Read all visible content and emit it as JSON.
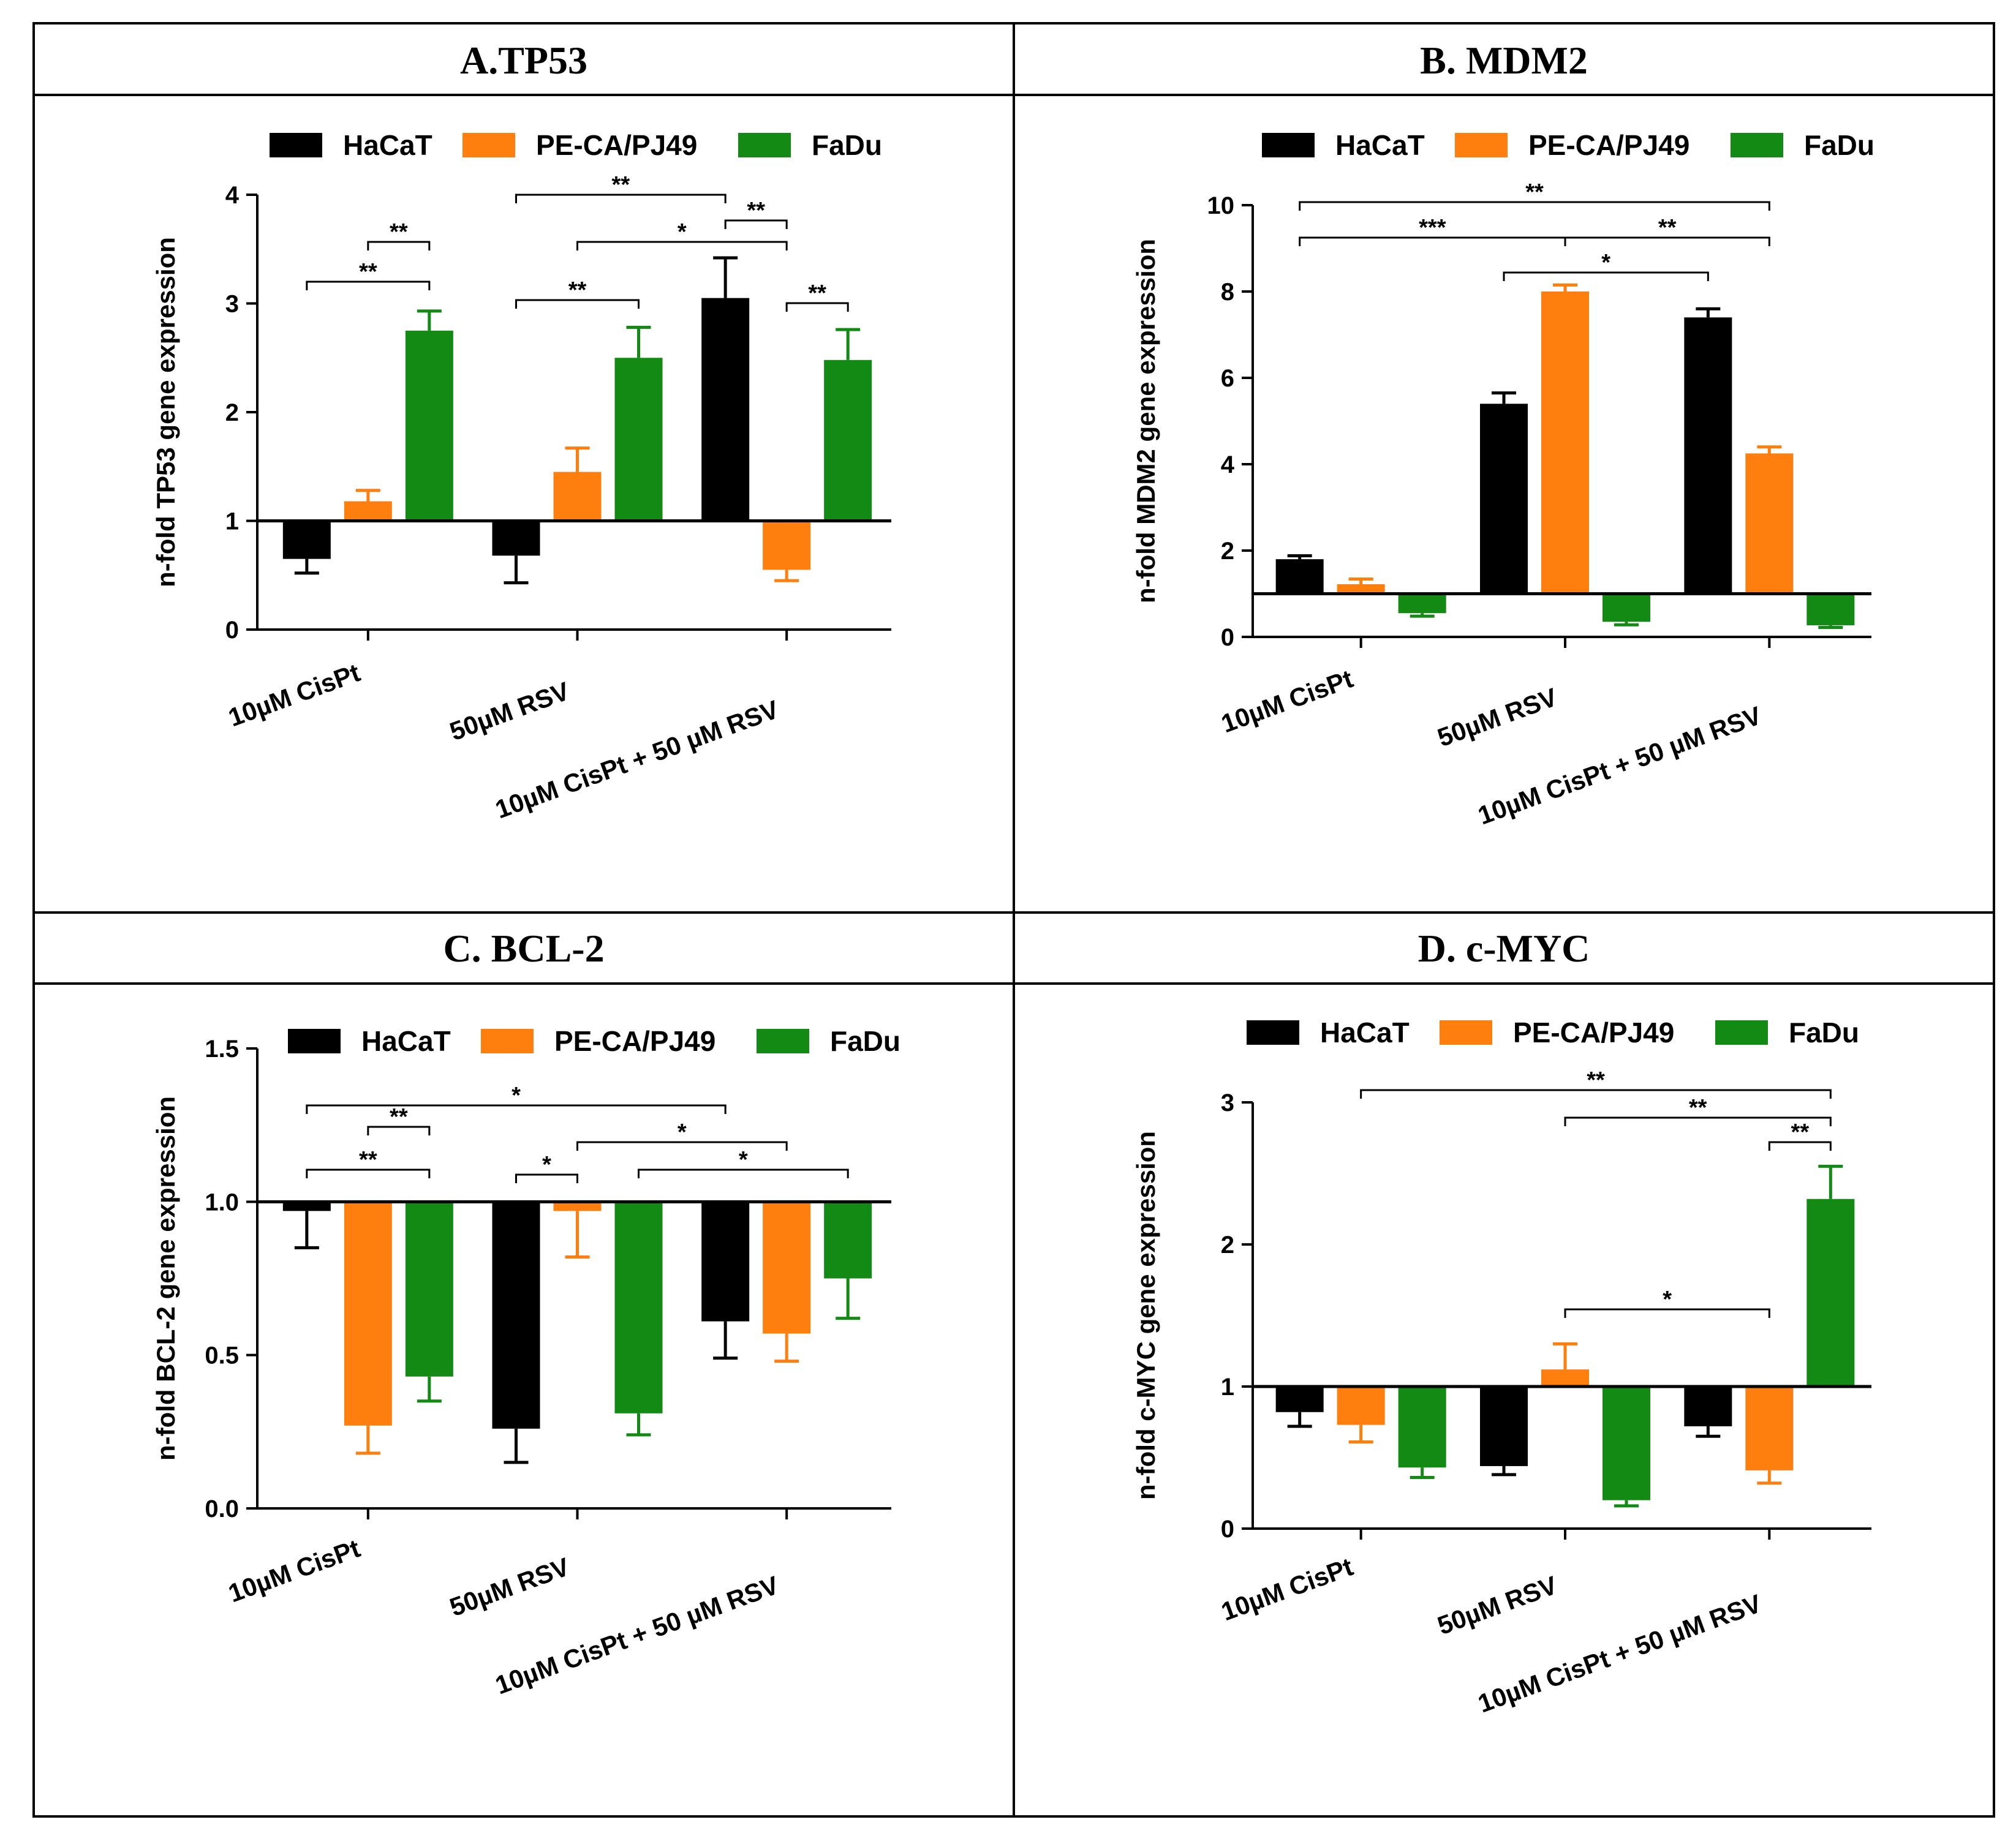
{
  "colors": {
    "HaCaT": "#000000",
    "PE-CA/PJ49": "#ff7f0e",
    "FaDu": "#138a13"
  },
  "chart_data": [
    {
      "type": "bar",
      "title": "A.TP53",
      "ylabel": "n-fold TP53 gene expression",
      "xlabel": "",
      "ylim": [
        0,
        4
      ],
      "yticks": [
        0,
        1,
        2,
        3,
        4
      ],
      "baseline": 1,
      "categories": [
        "10µM CisPt",
        "50µM RSV",
        "10µM CisPt + 50 µM RSV"
      ],
      "series": [
        {
          "name": "HaCaT",
          "values": [
            0.65,
            0.68,
            3.05
          ],
          "errors": [
            0.13,
            0.25,
            0.37
          ]
        },
        {
          "name": "PE-CA/PJ49",
          "values": [
            1.18,
            1.45,
            0.55
          ],
          "errors": [
            0.1,
            0.22,
            0.1
          ]
        },
        {
          "name": "FaDu",
          "values": [
            2.75,
            2.5,
            2.48
          ],
          "errors": [
            0.18,
            0.28,
            0.28
          ]
        }
      ],
      "significance": [
        {
          "from": [
            0,
            0
          ],
          "to": [
            0,
            2
          ],
          "label": "**"
        },
        {
          "from": [
            0,
            1
          ],
          "to": [
            0,
            2
          ],
          "label": "**"
        },
        {
          "from": [
            1,
            0
          ],
          "to": [
            2,
            0
          ],
          "label": "**"
        },
        {
          "from": [
            1,
            0
          ],
          "to": [
            1,
            2
          ],
          "label": "**"
        },
        {
          "from": [
            1,
            1
          ],
          "to": [
            2,
            1
          ],
          "label": "*"
        },
        {
          "from": [
            2,
            0
          ],
          "to": [
            2,
            1
          ],
          "label": "**"
        },
        {
          "from": [
            2,
            1
          ],
          "to": [
            2,
            2
          ],
          "label": "**"
        }
      ]
    },
    {
      "type": "bar",
      "title": "B. MDM2",
      "ylabel": "n-fold MDM2 gene expression",
      "xlabel": "",
      "ylim": [
        0,
        10
      ],
      "yticks": [
        0,
        2,
        4,
        6,
        8,
        10
      ],
      "baseline": 1,
      "categories": [
        "10µM CisPt",
        "50µM RSV",
        "10µM CisPt + 50 µM RSV"
      ],
      "series": [
        {
          "name": "HaCaT",
          "values": [
            1.8,
            5.4,
            7.4
          ],
          "errors": [
            0.08,
            0.25,
            0.2
          ]
        },
        {
          "name": "PE-CA/PJ49",
          "values": [
            1.22,
            8.0,
            4.25
          ],
          "errors": [
            0.12,
            0.15,
            0.15
          ]
        },
        {
          "name": "FaDu",
          "values": [
            0.55,
            0.35,
            0.27
          ],
          "errors": [
            0.07,
            0.07,
            0.05
          ]
        }
      ],
      "significance": [
        {
          "from": [
            0,
            0
          ],
          "to": [
            2,
            1
          ],
          "label": "**"
        },
        {
          "from": [
            0,
            0
          ],
          "to": [
            1,
            1
          ],
          "label": "***"
        },
        {
          "from": [
            1,
            1
          ],
          "to": [
            2,
            1
          ],
          "label": "**"
        },
        {
          "from": [
            1,
            0
          ],
          "to": [
            2,
            0
          ],
          "label": "*"
        }
      ]
    },
    {
      "type": "bar",
      "title": "C. BCL-2",
      "ylabel": "n-fold BCL-2 gene expression",
      "xlabel": "",
      "ylim": [
        0,
        1.5
      ],
      "yticks": [
        0.0,
        0.5,
        1.0,
        1.5
      ],
      "ytick_labels": [
        "0.0",
        "0.5",
        "1.0",
        "1.5"
      ],
      "baseline": 1,
      "categories": [
        "10µM CisPt",
        "50µM RSV",
        "10µM CisPt + 50 µM RSV"
      ],
      "series": [
        {
          "name": "HaCaT",
          "values": [
            0.97,
            0.26,
            0.61
          ],
          "errors": [
            0.12,
            0.11,
            0.12
          ]
        },
        {
          "name": "PE-CA/PJ49",
          "values": [
            0.27,
            0.97,
            0.57
          ],
          "errors": [
            0.09,
            0.15,
            0.09
          ]
        },
        {
          "name": "FaDu",
          "values": [
            0.43,
            0.31,
            0.75
          ],
          "errors": [
            0.08,
            0.07,
            0.13
          ]
        }
      ],
      "significance": [
        {
          "from": [
            0,
            0
          ],
          "to": [
            2,
            0
          ],
          "label": "*"
        },
        {
          "from": [
            0,
            1
          ],
          "to": [
            0,
            2
          ],
          "label": "**"
        },
        {
          "from": [
            1,
            1
          ],
          "to": [
            2,
            1
          ],
          "label": "*"
        },
        {
          "from": [
            0,
            0
          ],
          "to": [
            0,
            2
          ],
          "label": "**"
        },
        {
          "from": [
            1,
            0
          ],
          "to": [
            1,
            1
          ],
          "label": "*"
        },
        {
          "from": [
            1,
            2
          ],
          "to": [
            2,
            2
          ],
          "label": "*"
        }
      ]
    },
    {
      "type": "bar",
      "title": "D. c-MYC",
      "ylabel": "n-fold c-MYC gene expression",
      "xlabel": "",
      "ylim": [
        0,
        3
      ],
      "yticks": [
        0,
        1,
        2,
        3
      ],
      "baseline": 1,
      "categories": [
        "10µM CisPt",
        "50µM RSV",
        "10µM CisPt + 50 µM RSV"
      ],
      "series": [
        {
          "name": "HaCaT",
          "values": [
            0.82,
            0.44,
            0.72
          ],
          "errors": [
            0.1,
            0.06,
            0.07
          ]
        },
        {
          "name": "PE-CA/PJ49",
          "values": [
            0.73,
            1.12,
            0.41
          ],
          "errors": [
            0.12,
            0.18,
            0.09
          ]
        },
        {
          "name": "FaDu",
          "values": [
            0.43,
            0.2,
            2.32
          ],
          "errors": [
            0.07,
            0.04,
            0.23
          ]
        }
      ],
      "significance": [
        {
          "from": [
            0,
            1
          ],
          "to": [
            2,
            2
          ],
          "label": "**"
        },
        {
          "from": [
            1,
            1
          ],
          "to": [
            2,
            2
          ],
          "label": "**"
        },
        {
          "from": [
            2,
            1
          ],
          "to": [
            2,
            2
          ],
          "label": "**"
        },
        {
          "from": [
            1,
            1
          ],
          "to": [
            2,
            1
          ],
          "label": "*"
        }
      ]
    }
  ]
}
